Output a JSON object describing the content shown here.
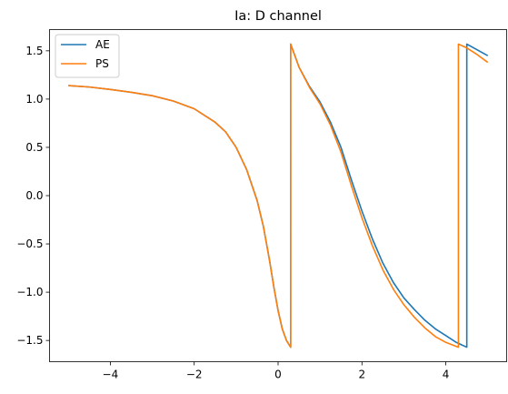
{
  "chart_data": {
    "type": "line",
    "title": "Ia: D channel",
    "xlabel": "",
    "ylabel": "",
    "xlim": [
      -5.45,
      5.45
    ],
    "ylim": [
      -1.72,
      1.72
    ],
    "xticks": [
      -4,
      -2,
      0,
      2,
      4
    ],
    "xtick_labels": [
      "−4",
      "−2",
      "0",
      "2",
      "4"
    ],
    "yticks": [
      -1.5,
      -1.0,
      -0.5,
      0.0,
      0.5,
      1.0,
      1.5
    ],
    "ytick_labels": [
      "−1.5",
      "−1.0",
      "−0.5",
      "0.0",
      "0.5",
      "1.0",
      "1.5"
    ],
    "grid": false,
    "legend_position": "top-left",
    "series": [
      {
        "name": "AE",
        "color": "#1f77b4",
        "x": [
          -5.0,
          -4.5,
          -4.0,
          -3.5,
          -3.0,
          -2.5,
          -2.0,
          -1.5,
          -1.25,
          -1.0,
          -0.75,
          -0.5,
          -0.35,
          -0.2,
          -0.1,
          0.0,
          0.1,
          0.2,
          0.3,
          0.3,
          0.4,
          0.5,
          0.75,
          1.0,
          1.25,
          1.5,
          1.75,
          2.0,
          2.25,
          2.5,
          2.75,
          3.0,
          3.25,
          3.5,
          3.75,
          4.0,
          4.25,
          4.5,
          4.5,
          4.75,
          5.0
        ],
        "y": [
          1.14,
          1.125,
          1.1,
          1.07,
          1.035,
          0.98,
          0.9,
          0.76,
          0.66,
          0.5,
          0.27,
          -0.05,
          -0.32,
          -0.68,
          -0.95,
          -1.19,
          -1.38,
          -1.5,
          -1.57,
          1.57,
          1.45,
          1.33,
          1.13,
          0.97,
          0.76,
          0.5,
          0.16,
          -0.16,
          -0.45,
          -0.7,
          -0.9,
          -1.06,
          -1.18,
          -1.29,
          -1.38,
          -1.45,
          -1.52,
          -1.57,
          1.57,
          1.51,
          1.45
        ]
      },
      {
        "name": "PS",
        "color": "#ff7f0e",
        "x": [
          -5.0,
          -4.5,
          -4.0,
          -3.5,
          -3.0,
          -2.5,
          -2.0,
          -1.5,
          -1.25,
          -1.0,
          -0.75,
          -0.5,
          -0.35,
          -0.2,
          -0.1,
          0.0,
          0.1,
          0.2,
          0.3,
          0.3,
          0.4,
          0.5,
          0.75,
          1.0,
          1.25,
          1.5,
          1.75,
          2.0,
          2.25,
          2.5,
          2.75,
          3.0,
          3.25,
          3.5,
          3.75,
          4.0,
          4.3,
          4.3,
          4.5,
          4.75,
          5.0
        ],
        "y": [
          1.14,
          1.125,
          1.1,
          1.07,
          1.035,
          0.98,
          0.9,
          0.76,
          0.66,
          0.5,
          0.27,
          -0.05,
          -0.32,
          -0.68,
          -0.95,
          -1.19,
          -1.38,
          -1.5,
          -1.57,
          1.57,
          1.45,
          1.33,
          1.12,
          0.95,
          0.73,
          0.45,
          0.1,
          -0.23,
          -0.52,
          -0.77,
          -0.97,
          -1.13,
          -1.26,
          -1.37,
          -1.46,
          -1.52,
          -1.57,
          1.57,
          1.53,
          1.46,
          1.38
        ]
      }
    ]
  }
}
